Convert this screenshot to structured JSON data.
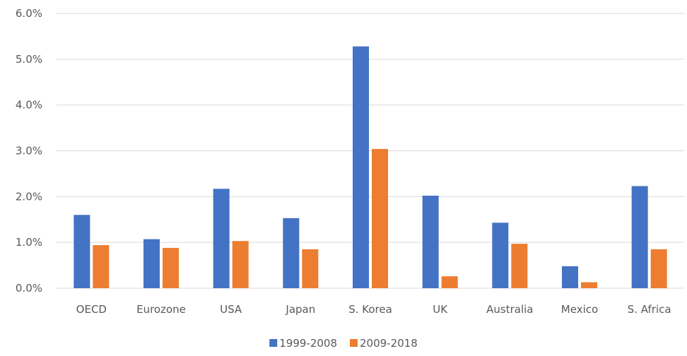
{
  "chart_data": {
    "type": "bar",
    "title": "",
    "xlabel": "",
    "ylabel": "",
    "categories": [
      "OECD",
      "Eurozone",
      "USA",
      "Japan",
      "S. Korea",
      "UK",
      "Australia",
      "Mexico",
      "S. Africa"
    ],
    "series": [
      {
        "name": "1999-2008",
        "color": "#4472C4",
        "values": [
          1.6,
          1.07,
          2.17,
          1.53,
          5.28,
          2.02,
          1.43,
          0.48,
          2.23
        ]
      },
      {
        "name": "2009-2018",
        "color": "#ED7D31",
        "values": [
          0.94,
          0.88,
          1.03,
          0.85,
          3.04,
          0.26,
          0.97,
          0.13,
          0.85
        ]
      }
    ],
    "ylim": [
      0,
      6
    ],
    "y_ticks": [
      0,
      1,
      2,
      3,
      4,
      5,
      6
    ],
    "y_tick_labels": [
      "0.0%",
      "1.0%",
      "2.0%",
      "3.0%",
      "4.0%",
      "5.0%",
      "6.0%"
    ],
    "grid": true,
    "gridline_color": "#D9D9D9",
    "legend_position": "bottom"
  }
}
